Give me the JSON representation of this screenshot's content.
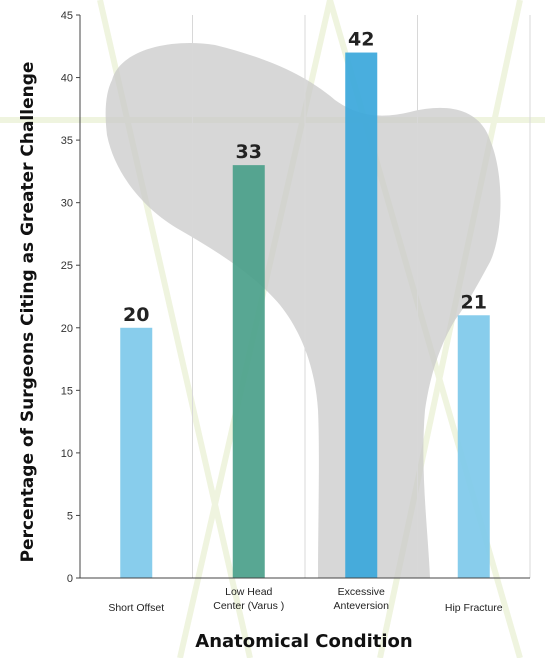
{
  "chart_data": {
    "type": "bar",
    "categories": [
      [
        "Short Offset"
      ],
      [
        "Low Head",
        "Center (Varus )"
      ],
      [
        "Excessive",
        "Anteversion"
      ],
      [
        "Hip Fracture"
      ]
    ],
    "values": [
      20,
      33,
      42,
      21
    ],
    "data_labels": [
      "20",
      "33",
      "42",
      "21"
    ],
    "bar_colors": [
      "#7ec9ea",
      "#4aa08a",
      "#3aa7db",
      "#7ec9ea"
    ],
    "title": "",
    "xlabel": "Anatomical Condition",
    "ylabel": "Percentage of Surgeons Citing as Greater Challenge",
    "ylim": [
      0,
      45
    ],
    "yticks": [
      0,
      5,
      10,
      15,
      20,
      25,
      30,
      35,
      40,
      45
    ],
    "grid": "vertical",
    "legend": "none",
    "background_image": "femur-bone-silhouette"
  }
}
